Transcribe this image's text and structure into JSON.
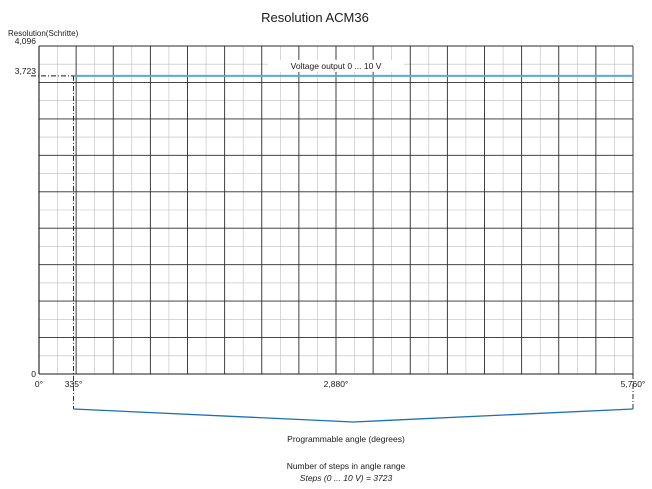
{
  "chart_data": {
    "type": "line",
    "title": "Resolution ACM36",
    "ylabel": "Resolution(Schritte)",
    "xlabel": "Programmable angle (degrees)",
    "xlim": [
      0,
      5760
    ],
    "ylim": [
      0,
      4096
    ],
    "x_ticks": [
      {
        "value": 0,
        "label": "0°"
      },
      {
        "value": 335,
        "label": "335°"
      },
      {
        "value": 2880,
        "label": "2,880°"
      },
      {
        "value": 5760,
        "label": "5,760°"
      }
    ],
    "y_ticks": [
      {
        "value": 0,
        "label": "0"
      },
      {
        "value": 3723,
        "label": "3,723"
      },
      {
        "value": 4096,
        "label": "4,096"
      }
    ],
    "series": [
      {
        "name": "Voltage output 0 ... 10 V",
        "x": [
          335,
          5760
        ],
        "y": [
          3723,
          3723
        ]
      }
    ],
    "range_start": 335,
    "range_end": 5760,
    "range_value": 3723,
    "grid": true,
    "line_color": "#5aa9d6",
    "brace_color": "#1a6fb5"
  },
  "footer": {
    "line1": "Number of steps in angle range",
    "line2": "Steps (0 ... 10 V) = 3723"
  }
}
